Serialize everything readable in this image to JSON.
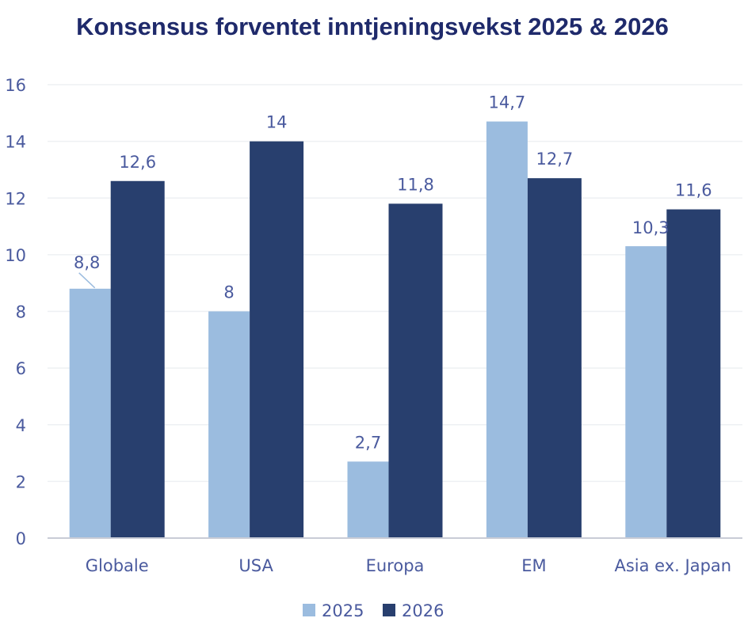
{
  "chart_data": {
    "type": "bar",
    "title": "Konsensus forventet inntjeningsvekst 2025 & 2026",
    "categories": [
      "Globale",
      "USA",
      "Europa",
      "EM",
      "Asia ex. Japan"
    ],
    "series": [
      {
        "name": "2025",
        "color": "#9bbcdf",
        "values": [
          8.8,
          8,
          2.7,
          14.7,
          10.3
        ],
        "labels": [
          "8,8",
          "8",
          "2,7",
          "14,7",
          "10,3"
        ]
      },
      {
        "name": "2026",
        "color": "#283f6e",
        "values": [
          12.6,
          14,
          11.8,
          12.7,
          11.6
        ],
        "labels": [
          "12,6",
          "14",
          "11,8",
          "12,7",
          "11,6"
        ]
      }
    ],
    "ylim": [
      0,
      16
    ],
    "yticks": [
      "0",
      "2",
      "4",
      "6",
      "8",
      "10",
      "12",
      "14",
      "16"
    ],
    "xlabel": "",
    "ylabel": "",
    "grid": true,
    "legend": "bottom"
  }
}
